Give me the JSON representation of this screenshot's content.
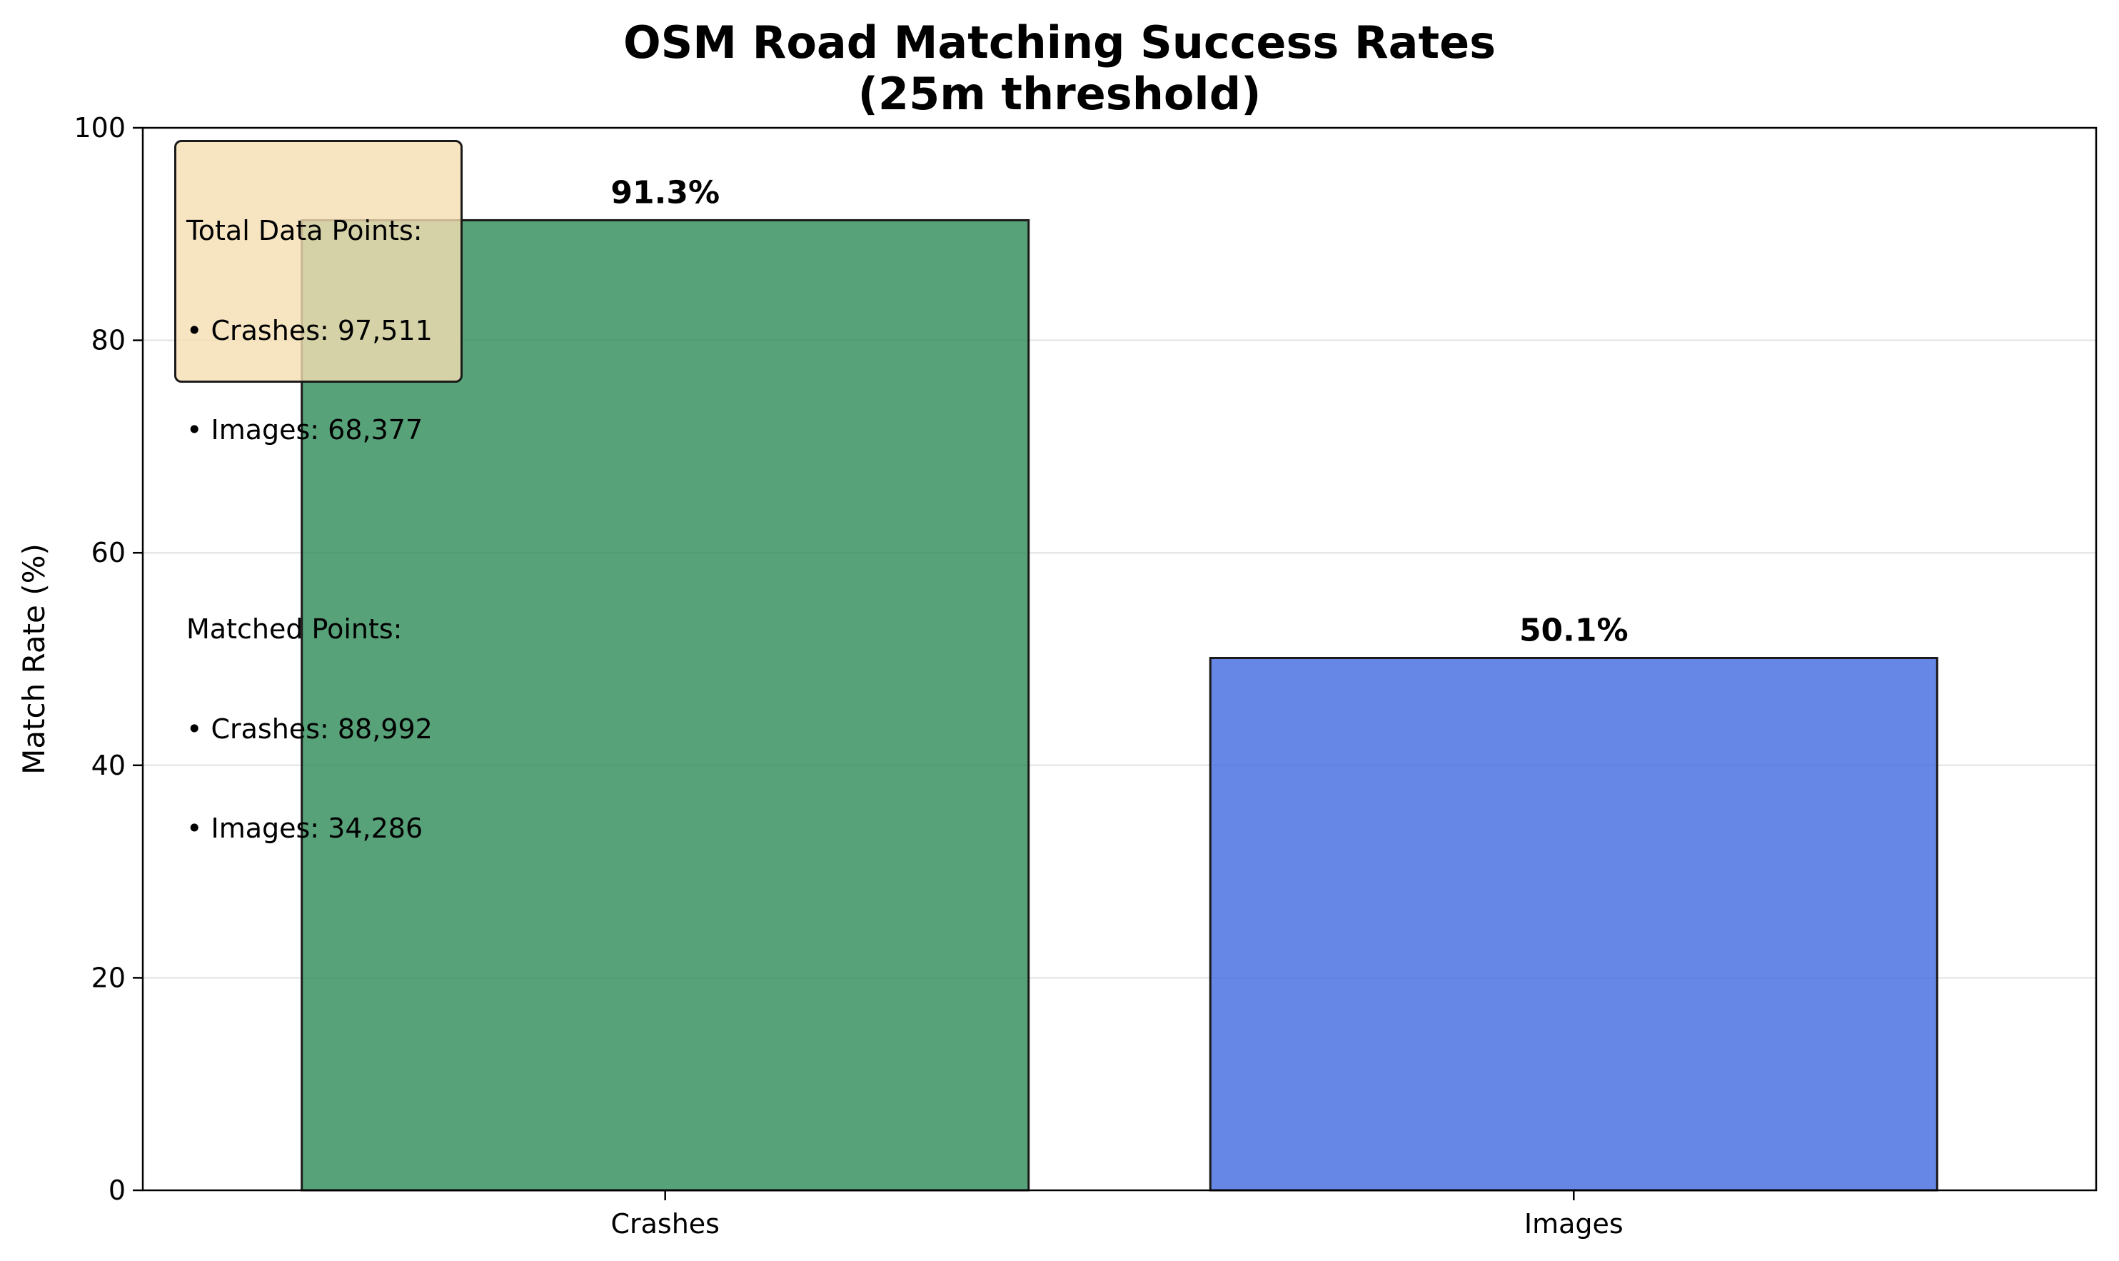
{
  "chart_data": {
    "type": "bar",
    "title": "OSM Road Matching Success Rates",
    "subtitle": "(25m threshold)",
    "xlabel": "",
    "ylabel": "Match Rate (%)",
    "categories": [
      "Crashes",
      "Images"
    ],
    "values": [
      91.3,
      50.1
    ],
    "value_labels": [
      "91.3%",
      "50.1%"
    ],
    "colors": [
      "#2e8b57",
      "#4169e1"
    ],
    "ylim": [
      0,
      100
    ],
    "yticks": [
      0,
      20,
      40,
      60,
      80,
      100
    ],
    "grid": "y",
    "legend": null,
    "annotation": {
      "lines_top": [
        "Total Data Points:",
        "• Crashes: 97,511",
        "• Images: 68,377"
      ],
      "lines_bottom": [
        "Matched Points:",
        "• Crashes: 88,992",
        "• Images: 34,286"
      ],
      "placement": "top-left"
    }
  }
}
